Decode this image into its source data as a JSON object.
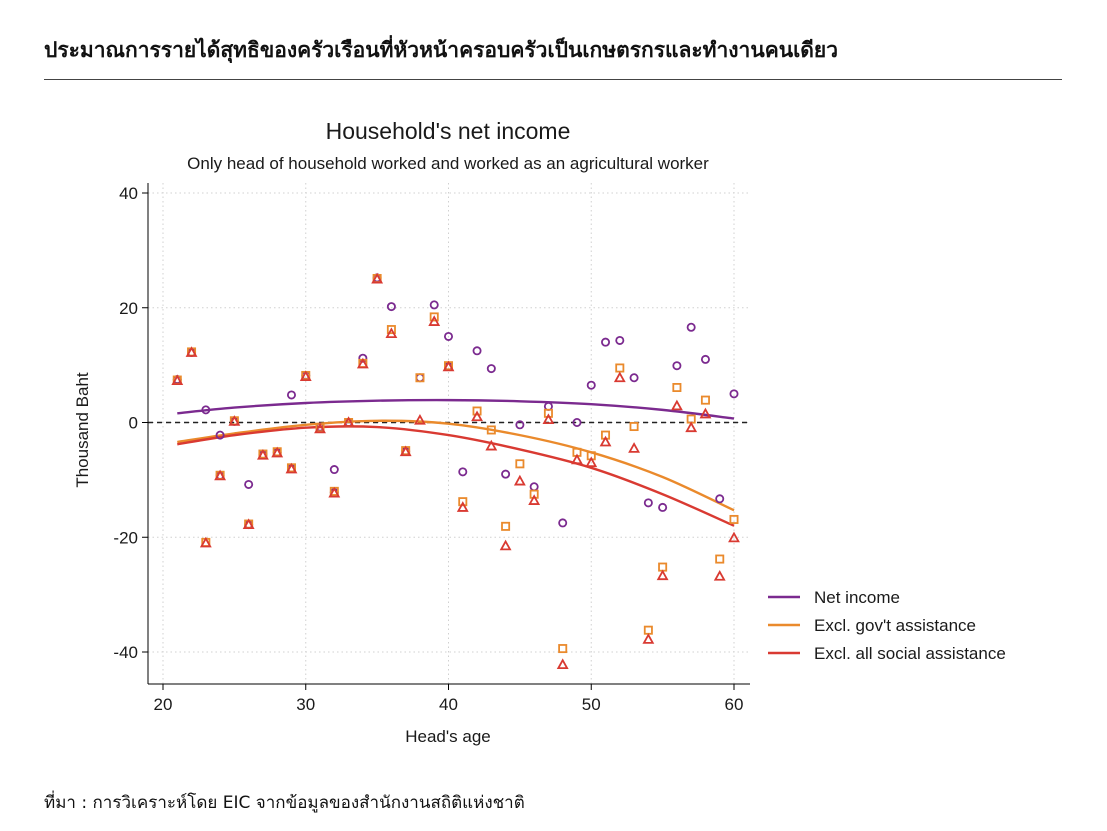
{
  "header": {
    "title": "ประมาณการรายได้สุทธิของครัวเรือนที่หัวหน้าครอบครัวเป็นเกษตรกรและทำงานคนเดียว"
  },
  "source": "ที่มา : การวิเคราะห์โดย EIC จากข้อมูลของสำนักงานสถิติแห่งชาติ",
  "colors": {
    "net_income": "#7b2a8f",
    "excl_gov": "#ea8a2c",
    "excl_all": "#d93a32",
    "grid": "#d0d0d0",
    "zero_line": "#222222"
  },
  "chart_data": {
    "type": "scatter",
    "title": "Household's net income",
    "subtitle": "Only head of household worked and worked as an agricultural worker",
    "xlabel": "Head's age",
    "ylabel": "Thousand Baht",
    "xlim": [
      19,
      61.5
    ],
    "ylim": [
      -44,
      41
    ],
    "xticks": [
      20,
      30,
      40,
      50,
      60
    ],
    "yticks": [
      40,
      20,
      0,
      -20,
      -40
    ],
    "grid": true,
    "zero_reference_line": 0,
    "legend_position": "bottom-right",
    "series": [
      {
        "name": "Net income",
        "marker": "circle",
        "color": "#7b2a8f",
        "points": [
          [
            21,
            7.5
          ],
          [
            22,
            12.2
          ],
          [
            23,
            2.2
          ],
          [
            24,
            -2.2
          ],
          [
            24,
            -9.2
          ],
          [
            25,
            0.2
          ],
          [
            26,
            -10.8
          ],
          [
            26,
            -17.8
          ],
          [
            27,
            -5.6
          ],
          [
            28,
            -5.2
          ],
          [
            29,
            4.8
          ],
          [
            29,
            -8.0
          ],
          [
            30,
            8.2
          ],
          [
            31,
            -0.8
          ],
          [
            32,
            -8.2
          ],
          [
            32,
            -12.2
          ],
          [
            33,
            0.0
          ],
          [
            34,
            11.2
          ],
          [
            35,
            25.2
          ],
          [
            36,
            20.2
          ],
          [
            37,
            -5.0
          ],
          [
            38,
            7.8
          ],
          [
            39,
            20.5
          ],
          [
            40,
            15.0
          ],
          [
            40,
            9.8
          ],
          [
            41,
            -8.6
          ],
          [
            42,
            12.5
          ],
          [
            43,
            9.4
          ],
          [
            44,
            -9.0
          ],
          [
            45,
            -0.4
          ],
          [
            46,
            -11.2
          ],
          [
            47,
            2.8
          ],
          [
            48,
            -17.5
          ],
          [
            49,
            0.0
          ],
          [
            50,
            6.5
          ],
          [
            51,
            14.0
          ],
          [
            52,
            14.3
          ],
          [
            53,
            7.8
          ],
          [
            54,
            -14.0
          ],
          [
            55,
            -14.8
          ],
          [
            56,
            9.9
          ],
          [
            57,
            16.6
          ],
          [
            58,
            11.0
          ],
          [
            59,
            -13.3
          ],
          [
            60,
            5.0
          ]
        ],
        "fit_curve": [
          [
            21,
            1.6
          ],
          [
            25,
            2.6
          ],
          [
            30,
            3.4
          ],
          [
            35,
            3.8
          ],
          [
            40,
            3.9
          ],
          [
            45,
            3.7
          ],
          [
            50,
            3.2
          ],
          [
            55,
            2.2
          ],
          [
            60,
            0.7
          ]
        ]
      },
      {
        "name": "Excl. gov't assistance",
        "marker": "square",
        "color": "#ea8a2c",
        "points": [
          [
            21,
            7.4
          ],
          [
            22,
            12.3
          ],
          [
            23,
            -20.9
          ],
          [
            24,
            -9.2
          ],
          [
            25,
            0.3
          ],
          [
            26,
            -17.7
          ],
          [
            27,
            -5.5
          ],
          [
            28,
            -5.1
          ],
          [
            29,
            -7.9
          ],
          [
            30,
            8.2
          ],
          [
            31,
            -0.9
          ],
          [
            32,
            -12.0
          ],
          [
            33,
            0.0
          ],
          [
            34,
            10.3
          ],
          [
            35,
            25.1
          ],
          [
            36,
            16.2
          ],
          [
            37,
            -4.9
          ],
          [
            38,
            7.8
          ],
          [
            39,
            18.4
          ],
          [
            40,
            9.9
          ],
          [
            41,
            -13.8
          ],
          [
            42,
            2.0
          ],
          [
            43,
            -1.3
          ],
          [
            44,
            -18.1
          ],
          [
            45,
            -7.2
          ],
          [
            46,
            -12.5
          ],
          [
            47,
            1.6
          ],
          [
            48,
            -39.4
          ],
          [
            49,
            -5.2
          ],
          [
            50,
            -5.8
          ],
          [
            51,
            -2.2
          ],
          [
            52,
            9.5
          ],
          [
            53,
            -0.7
          ],
          [
            54,
            -36.2
          ],
          [
            55,
            -25.2
          ],
          [
            56,
            6.1
          ],
          [
            57,
            0.6
          ],
          [
            58,
            3.9
          ],
          [
            59,
            -23.8
          ],
          [
            60,
            -16.9
          ]
        ],
        "fit_curve": [
          [
            21,
            -3.4
          ],
          [
            25,
            -1.9
          ],
          [
            30,
            -0.4
          ],
          [
            35,
            0.3
          ],
          [
            40,
            -0.2
          ],
          [
            45,
            -2.2
          ],
          [
            50,
            -5.2
          ],
          [
            55,
            -9.5
          ],
          [
            60,
            -15.3
          ]
        ]
      },
      {
        "name": "Excl. all social assistance",
        "marker": "triangle",
        "color": "#d93a32",
        "points": [
          [
            21,
            7.3
          ],
          [
            22,
            12.2
          ],
          [
            23,
            -21.0
          ],
          [
            24,
            -9.3
          ],
          [
            25,
            0.2
          ],
          [
            26,
            -17.8
          ],
          [
            27,
            -5.7
          ],
          [
            28,
            -5.3
          ],
          [
            29,
            -8.1
          ],
          [
            30,
            8.0
          ],
          [
            31,
            -1.1
          ],
          [
            32,
            -12.3
          ],
          [
            33,
            0.0
          ],
          [
            34,
            10.2
          ],
          [
            35,
            25.0
          ],
          [
            36,
            15.5
          ],
          [
            37,
            -5.1
          ],
          [
            38,
            0.4
          ],
          [
            39,
            17.6
          ],
          [
            40,
            9.7
          ],
          [
            41,
            -14.8
          ],
          [
            42,
            1.0
          ],
          [
            43,
            -4.1
          ],
          [
            44,
            -21.5
          ],
          [
            45,
            -10.2
          ],
          [
            46,
            -13.6
          ],
          [
            47,
            0.5
          ],
          [
            48,
            -42.2
          ],
          [
            49,
            -6.5
          ],
          [
            50,
            -7.0
          ],
          [
            51,
            -3.4
          ],
          [
            52,
            7.8
          ],
          [
            53,
            -4.5
          ],
          [
            54,
            -37.8
          ],
          [
            55,
            -26.7
          ],
          [
            56,
            2.9
          ],
          [
            57,
            -0.9
          ],
          [
            58,
            1.5
          ],
          [
            59,
            -26.8
          ],
          [
            60,
            -20.1
          ]
        ],
        "fit_curve": [
          [
            21,
            -3.8
          ],
          [
            25,
            -2.2
          ],
          [
            30,
            -0.9
          ],
          [
            35,
            -0.8
          ],
          [
            40,
            -2.2
          ],
          [
            45,
            -4.7
          ],
          [
            50,
            -7.9
          ],
          [
            55,
            -12.5
          ],
          [
            60,
            -18.0
          ]
        ]
      }
    ]
  }
}
